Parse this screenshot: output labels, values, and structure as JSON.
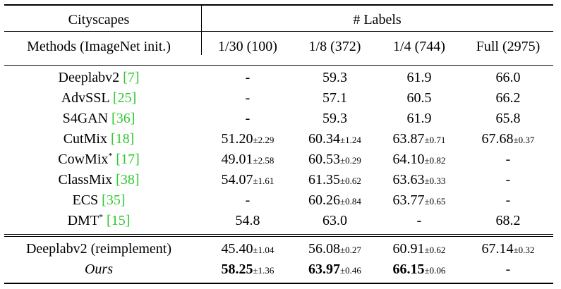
{
  "table": {
    "dataset": "Cityscapes",
    "labels_header": "# Labels",
    "columns": [
      "Methods (ImageNet init.)",
      "1/30 (100)",
      "1/8 (372)",
      "1/4 (744)",
      "Full (2975)"
    ],
    "rows": [
      {
        "name": "Deeplabv2 ",
        "sup": "",
        "cite": "7",
        "cells": [
          {
            "v": "-",
            "pm": ""
          },
          {
            "v": "59.3",
            "pm": ""
          },
          {
            "v": "61.9",
            "pm": ""
          },
          {
            "v": "66.0",
            "pm": ""
          }
        ]
      },
      {
        "name": "AdvSSL ",
        "sup": "",
        "cite": "25",
        "cells": [
          {
            "v": "-",
            "pm": ""
          },
          {
            "v": "57.1",
            "pm": ""
          },
          {
            "v": "60.5",
            "pm": ""
          },
          {
            "v": "66.2",
            "pm": ""
          }
        ]
      },
      {
        "name": "S4GAN ",
        "sup": "",
        "cite": "36",
        "cells": [
          {
            "v": "-",
            "pm": ""
          },
          {
            "v": "59.3",
            "pm": ""
          },
          {
            "v": "61.9",
            "pm": ""
          },
          {
            "v": "65.8",
            "pm": ""
          }
        ]
      },
      {
        "name": "CutMix ",
        "sup": "",
        "cite": "18",
        "cells": [
          {
            "v": "51.20",
            "pm": "±2.29"
          },
          {
            "v": "60.34",
            "pm": "±1.24"
          },
          {
            "v": "63.87",
            "pm": "±0.71"
          },
          {
            "v": "67.68",
            "pm": "±0.37"
          }
        ]
      },
      {
        "name": "CowMix",
        "sup": "*",
        "cite": "17",
        "cells": [
          {
            "v": "49.01",
            "pm": "±2.58"
          },
          {
            "v": "60.53",
            "pm": "±0.29"
          },
          {
            "v": "64.10",
            "pm": "±0.82"
          },
          {
            "v": "-",
            "pm": ""
          }
        ]
      },
      {
        "name": "ClassMix ",
        "sup": "",
        "cite": "38",
        "cells": [
          {
            "v": "54.07",
            "pm": "±1.61"
          },
          {
            "v": "61.35",
            "pm": "±0.62"
          },
          {
            "v": "63.63",
            "pm": "±0.33"
          },
          {
            "v": "-",
            "pm": ""
          }
        ]
      },
      {
        "name": "ECS ",
        "sup": "",
        "cite": "35",
        "cells": [
          {
            "v": "-",
            "pm": ""
          },
          {
            "v": "60.26",
            "pm": "±0.84"
          },
          {
            "v": "63.77",
            "pm": "±0.65"
          },
          {
            "v": "-",
            "pm": ""
          }
        ]
      },
      {
        "name": "DMT",
        "sup": "*",
        "cite": "15",
        "cells": [
          {
            "v": "54.8",
            "pm": ""
          },
          {
            "v": "63.0",
            "pm": ""
          },
          {
            "v": "-",
            "pm": ""
          },
          {
            "v": "68.2",
            "pm": ""
          }
        ]
      }
    ],
    "bottom_rows": [
      {
        "name": "Deeplabv2 (reimplement)",
        "cells": [
          {
            "v": "45.40",
            "pm": "±1.04"
          },
          {
            "v": "56.08",
            "pm": "±0.27"
          },
          {
            "v": "60.91",
            "pm": "±0.62"
          },
          {
            "v": "67.14",
            "pm": "±0.32"
          }
        ]
      },
      {
        "name": "Ours",
        "cells": [
          {
            "v": "58.25",
            "pm": "±1.36"
          },
          {
            "v": "63.97",
            "pm": "±0.46"
          },
          {
            "v": "66.15",
            "pm": "±0.06"
          },
          {
            "v": "-",
            "pm": ""
          }
        ]
      }
    ],
    "open_bracket": "[",
    "close_bracket": "]"
  }
}
